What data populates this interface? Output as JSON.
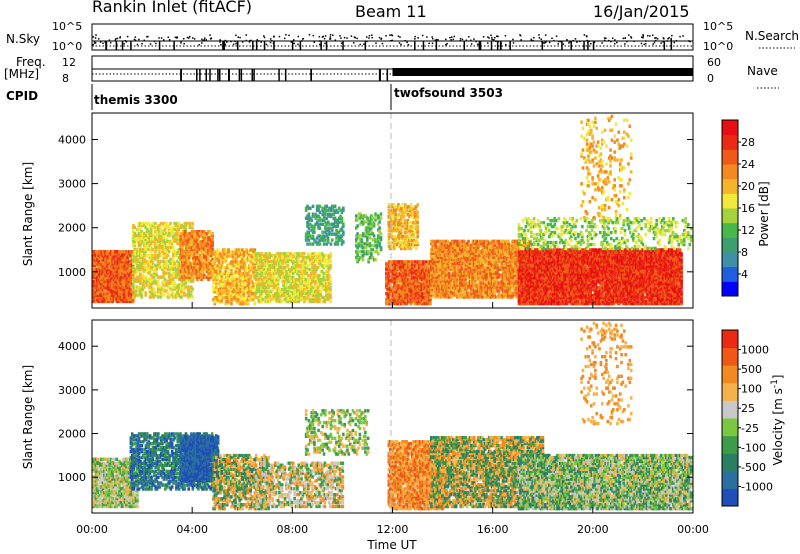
{
  "header": {
    "station": "Rankin Inlet (fitACF)",
    "beam": "Beam 11",
    "date": "16/Jan/2015"
  },
  "noise_panel": {
    "left_label": "N.Sky",
    "left_ticks": [
      "10^5",
      "10^0"
    ],
    "right_ticks": [
      "10^5",
      "10^0"
    ],
    "right_label": "N.Search"
  },
  "freq_panel": {
    "left_label_line1": "Freq.",
    "left_label_line2": "[MHz]",
    "left_ticks": [
      "12",
      "8"
    ],
    "right_ticks": [
      "60",
      "0"
    ],
    "right_label": "Nave"
  },
  "cpid": {
    "label": "CPID",
    "modes": [
      {
        "name": "themis 3300",
        "start_hour": 0
      },
      {
        "name": "twofsound 3503",
        "start_hour": 12
      }
    ]
  },
  "chart_data": [
    {
      "type": "heatmap",
      "quantity": "Power",
      "ylabel": "Slant Range [km]",
      "ylim": [
        180,
        4600
      ],
      "yticks": [
        1000,
        2000,
        3000,
        4000
      ],
      "xlim": [
        0,
        24
      ],
      "colorbar": {
        "label": "Power [dB]",
        "range": [
          0,
          32
        ],
        "ticks": [
          "4",
          "8",
          "12",
          "16",
          "20",
          "24",
          "28"
        ],
        "colors": [
          "#0000ff",
          "#1f5ee0",
          "#3f8fa8",
          "#3d9f70",
          "#46b848",
          "#a3d23c",
          "#f0e93a",
          "#f5b42b",
          "#f28a1f",
          "#ef5a18",
          "#eb2a13",
          "#e80f10"
        ]
      }
    },
    {
      "type": "heatmap",
      "quantity": "Velocity",
      "ylabel": "Slant Range [km]",
      "ylim": [
        180,
        4600
      ],
      "yticks": [
        1000,
        2000,
        3000,
        4000
      ],
      "xlim": [
        0,
        24
      ],
      "xticks": [
        "00:00",
        "04:00",
        "08:00",
        "12:00",
        "16:00",
        "20:00",
        "00:00"
      ],
      "xlabel": "Time UT",
      "colorbar": {
        "label_main": "Velocity [m s",
        "label_exp": "-1",
        "label_close": "]",
        "ticks": [
          "1000",
          "500",
          "100",
          "25",
          "-25",
          "-100",
          "-500",
          "-1000"
        ],
        "colors": [
          "#1f4fb8",
          "#2b6fa0",
          "#2a7f63",
          "#3d9c48",
          "#7ac740",
          "#c8c8c8",
          "#f6b24a",
          "#f28a22",
          "#ee5a16",
          "#ea2a12"
        ]
      }
    }
  ]
}
